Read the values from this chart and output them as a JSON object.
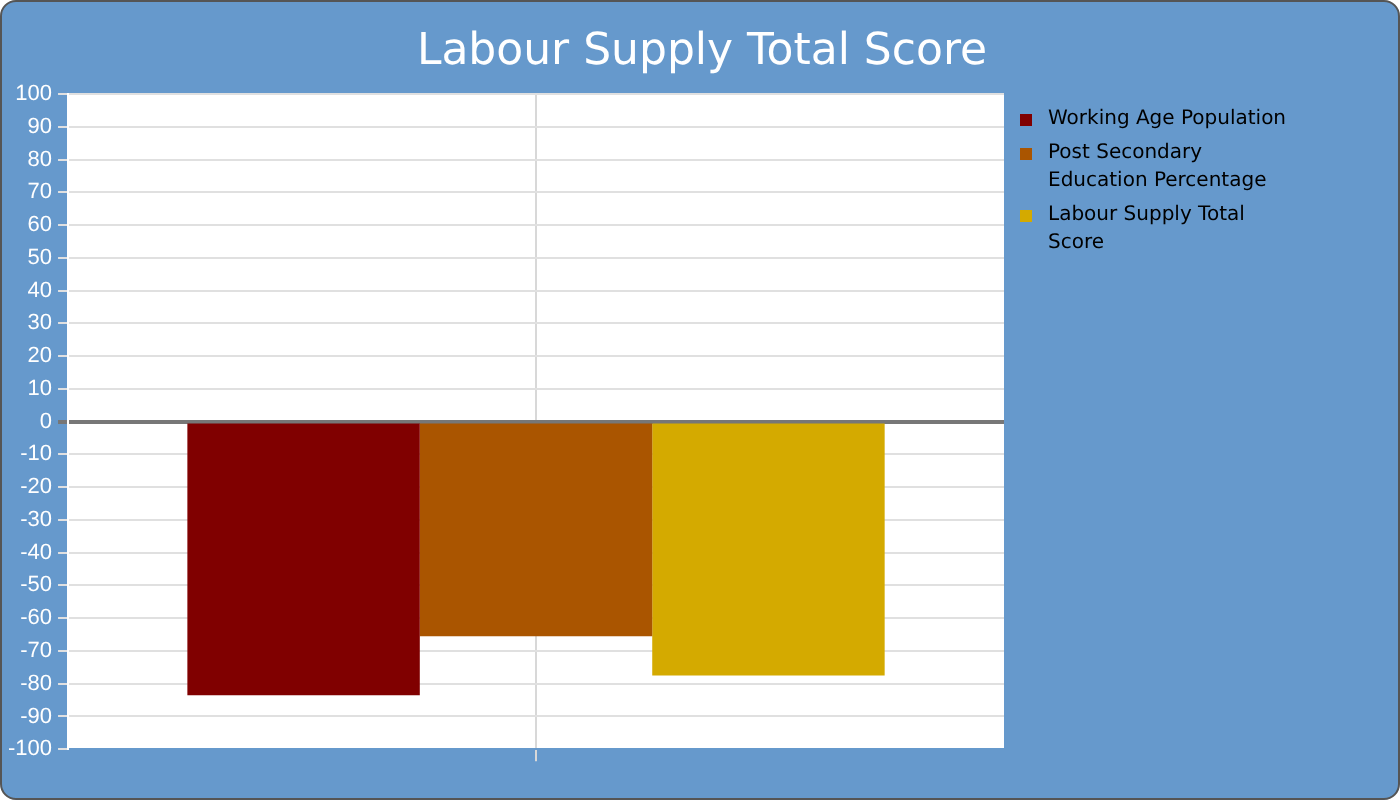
{
  "chart_data": {
    "type": "bar",
    "title": "Labour Supply Total Score",
    "categories": [
      null
    ],
    "series": [
      {
        "name": "Working Age Population",
        "color": "#800000",
        "values": [
          -83.5
        ]
      },
      {
        "name": "Post Secondary Education Percentage",
        "color": "#aa5500",
        "values": [
          -65.5
        ]
      },
      {
        "name": "Labour Supply Total Score",
        "color": "#d4aa00",
        "values": [
          -77.5
        ]
      }
    ],
    "ylim": [
      -100,
      100
    ],
    "yticks": [
      -100,
      -90,
      -80,
      -70,
      -60,
      -50,
      -40,
      -30,
      -20,
      -10,
      0,
      10,
      20,
      30,
      40,
      50,
      60,
      70,
      80,
      90,
      100
    ],
    "grid": true,
    "legend": "top right"
  }
}
